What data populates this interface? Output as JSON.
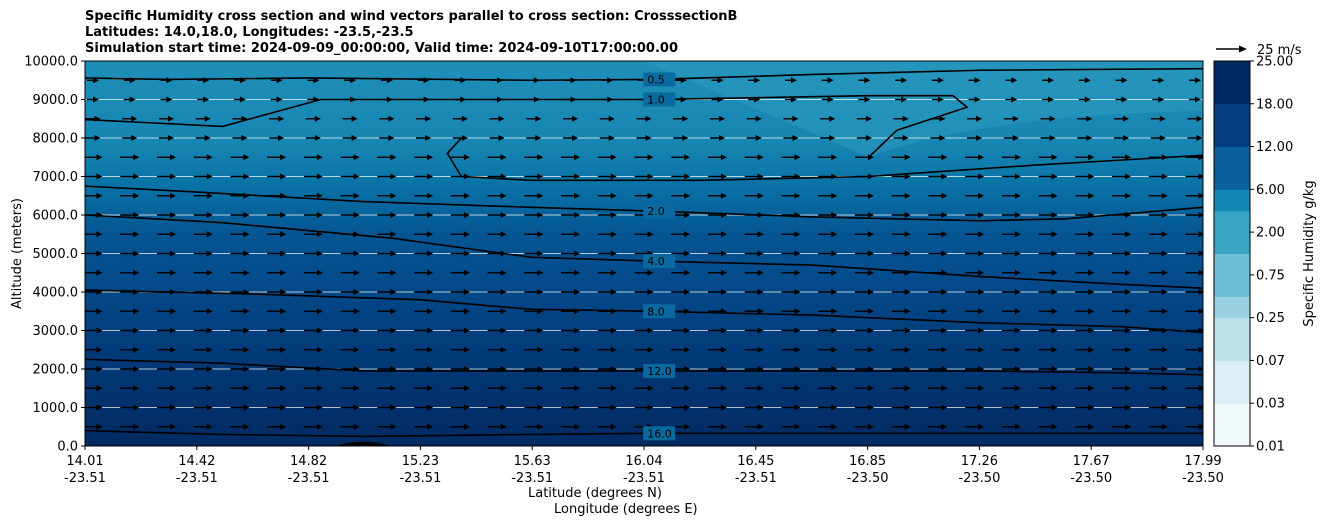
{
  "chart_data": {
    "type": "heatmap",
    "title": [
      "Specific Humidity cross section and wind vectors parallel to cross section: CrosssectionB",
      "Latitudes: 14.0,18.0, Longitudes: -23.5,-23.5",
      "Simulation start time: 2024-09-09_00:00:00, Valid time: 2024-09-10T17:00:00.00"
    ],
    "ylabel": "Altitude (meters)",
    "xlabel_lat": "Latitude (degrees N)",
    "xlabel_lon": "Longitude (degrees E)",
    "ylim": [
      0,
      10000
    ],
    "yticks": [
      "0.0",
      "1000.0",
      "2000.0",
      "3000.0",
      "4000.0",
      "5000.0",
      "6000.0",
      "7000.0",
      "8000.0",
      "9000.0",
      "10000.0"
    ],
    "xticks": [
      {
        "lat": "14.01",
        "lon": "-23.51"
      },
      {
        "lat": "14.42",
        "lon": "-23.51"
      },
      {
        "lat": "14.82",
        "lon": "-23.51"
      },
      {
        "lat": "15.23",
        "lon": "-23.51"
      },
      {
        "lat": "15.63",
        "lon": "-23.51"
      },
      {
        "lat": "16.04",
        "lon": "-23.51"
      },
      {
        "lat": "16.45",
        "lon": "-23.51"
      },
      {
        "lat": "16.85",
        "lon": "-23.50"
      },
      {
        "lat": "17.26",
        "lon": "-23.50"
      },
      {
        "lat": "17.67",
        "lon": "-23.50"
      },
      {
        "lat": "17.99",
        "lon": "-23.50"
      }
    ],
    "grid": "horizontal",
    "colorbar": {
      "label": "Specific Humidity g/kg",
      "ticks": [
        "0.01",
        "0.03",
        "0.07",
        "0.25",
        "0.75",
        "2.00",
        "6.00",
        "12.00",
        "18.00",
        "25.00"
      ]
    },
    "quiver_key": "25 m/s",
    "contours": [
      {
        "level": 0.5,
        "label": "0.5",
        "x": [
          14.01,
          14.3,
          14.8,
          15.6,
          16.04,
          16.6,
          17.2,
          17.99
        ],
        "y": [
          9560,
          9520,
          9560,
          9500,
          9520,
          9650,
          9760,
          9800
        ]
      },
      {
        "level": 1.0,
        "label": "1.0",
        "x": [
          14.01,
          14.5,
          14.85,
          15.3,
          16.04,
          16.8,
          17.1,
          17.15,
          16.9,
          16.8
        ],
        "y": [
          8480,
          8300,
          9000,
          9000,
          9000,
          9100,
          9100,
          8800,
          8200,
          7500
        ]
      },
      {
        "level": 1.0,
        "label": "",
        "x": [
          15.35,
          15.3,
          15.35,
          15.6,
          16.2,
          16.8,
          17.4,
          17.99
        ],
        "y": [
          8000,
          7600,
          7000,
          6900,
          6900,
          7000,
          7300,
          7550
        ]
      },
      {
        "level": 2.0,
        "label": "2.0",
        "x": [
          14.01,
          14.4,
          15.0,
          15.6,
          16.04,
          16.6,
          17.2,
          17.5,
          17.99
        ],
        "y": [
          6750,
          6600,
          6350,
          6200,
          6100,
          5950,
          5850,
          5900,
          6200
        ]
      },
      {
        "level": 4.0,
        "label": "4.0",
        "x": [
          14.01,
          14.5,
          15.1,
          15.6,
          16.04,
          16.6,
          17.2,
          17.7,
          17.99
        ],
        "y": [
          6000,
          5800,
          5400,
          4900,
          4800,
          4700,
          4400,
          4200,
          4100
        ]
      },
      {
        "level": 8.0,
        "label": "8.0",
        "x": [
          14.01,
          14.6,
          15.2,
          15.6,
          16.04,
          16.6,
          17.2,
          17.7,
          17.99
        ],
        "y": [
          4050,
          3950,
          3800,
          3550,
          3500,
          3400,
          3200,
          3100,
          2950
        ]
      },
      {
        "level": 12.0,
        "label": "12.0",
        "x": [
          14.01,
          14.5,
          15.0,
          15.6,
          16.04,
          16.6,
          17.2,
          17.7,
          17.99
        ],
        "y": [
          2250,
          2150,
          1950,
          1950,
          1950,
          1950,
          1950,
          1900,
          1850
        ]
      },
      {
        "level": 16.0,
        "label": "16.0",
        "x": [
          14.01,
          14.5,
          15.0,
          15.6,
          16.04,
          16.6,
          17.2,
          17.7,
          17.99
        ],
        "y": [
          400,
          300,
          250,
          300,
          330,
          330,
          330,
          330,
          330
        ]
      }
    ]
  }
}
